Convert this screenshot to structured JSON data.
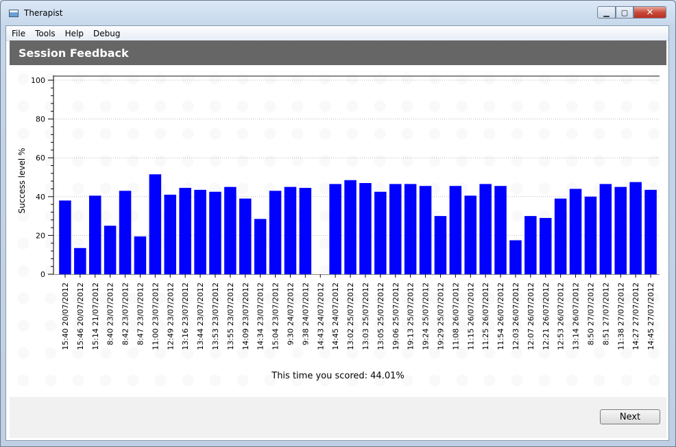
{
  "window": {
    "title": "Therapist",
    "minimize_glyph": "▁",
    "maximize_glyph": "▢",
    "close_glyph": "✕"
  },
  "menu": [
    "File",
    "Tools",
    "Help",
    "Debug"
  ],
  "header": {
    "title": "Session Feedback"
  },
  "score_text": "This time you scored: 44.01%",
  "next_label": "Next",
  "colors": {
    "bar": "#0000ff",
    "header_band": "#666666"
  },
  "chart_data": {
    "type": "bar",
    "ylabel": "Success level %",
    "ylim": [
      0,
      100
    ],
    "yticks": [
      0,
      20,
      40,
      60,
      80,
      100
    ],
    "grid": true,
    "categories": [
      "15:40 20/07/2012",
      "15:46 20/07/2012",
      "15:14 21/07/2012",
      "8:40 23/07/2012",
      "8:42 23/07/2012",
      "8:47 23/07/2012",
      "11:00 23/07/2012",
      "12:49 23/07/2012",
      "13:16 23/07/2012",
      "13:44 23/07/2012",
      "13:53 23/07/2012",
      "13:55 23/07/2012",
      "14:09 23/07/2012",
      "14:34 23/07/2012",
      "15:04 23/07/2012",
      "9:30 24/07/2012",
      "9:38 24/07/2012",
      "14:43 24/07/2012",
      "14:45 24/07/2012",
      "13:02 25/07/2012",
      "13:03 25/07/2012",
      "13:05 25/07/2012",
      "19:06 25/07/2012",
      "19:13 25/07/2012",
      "19:24 25/07/2012",
      "19:29 25/07/2012",
      "11:08 26/07/2012",
      "11:15 26/07/2012",
      "11:25 26/07/2012",
      "11:54 26/07/2012",
      "12:03 26/07/2012",
      "12:07 26/07/2012",
      "12:21 26/07/2012",
      "12:53 26/07/2012",
      "13:14 26/07/2012",
      "8:50 27/07/2012",
      "8:51 27/07/2012",
      "11:38 27/07/2012",
      "14:27 27/07/2012",
      "14:45 27/07/2012"
    ],
    "values": [
      38,
      13.5,
      40.5,
      25,
      43,
      19.5,
      51.5,
      41,
      44.5,
      43.5,
      42.5,
      45,
      39,
      28.5,
      43,
      45,
      44.5,
      0,
      46.5,
      48.5,
      47,
      42.5,
      46.5,
      46.5,
      45.5,
      30,
      45.5,
      40.5,
      46.5,
      45.5,
      17.5,
      30,
      29,
      39,
      44,
      40,
      46.5,
      45,
      47.5,
      43.5
    ]
  }
}
